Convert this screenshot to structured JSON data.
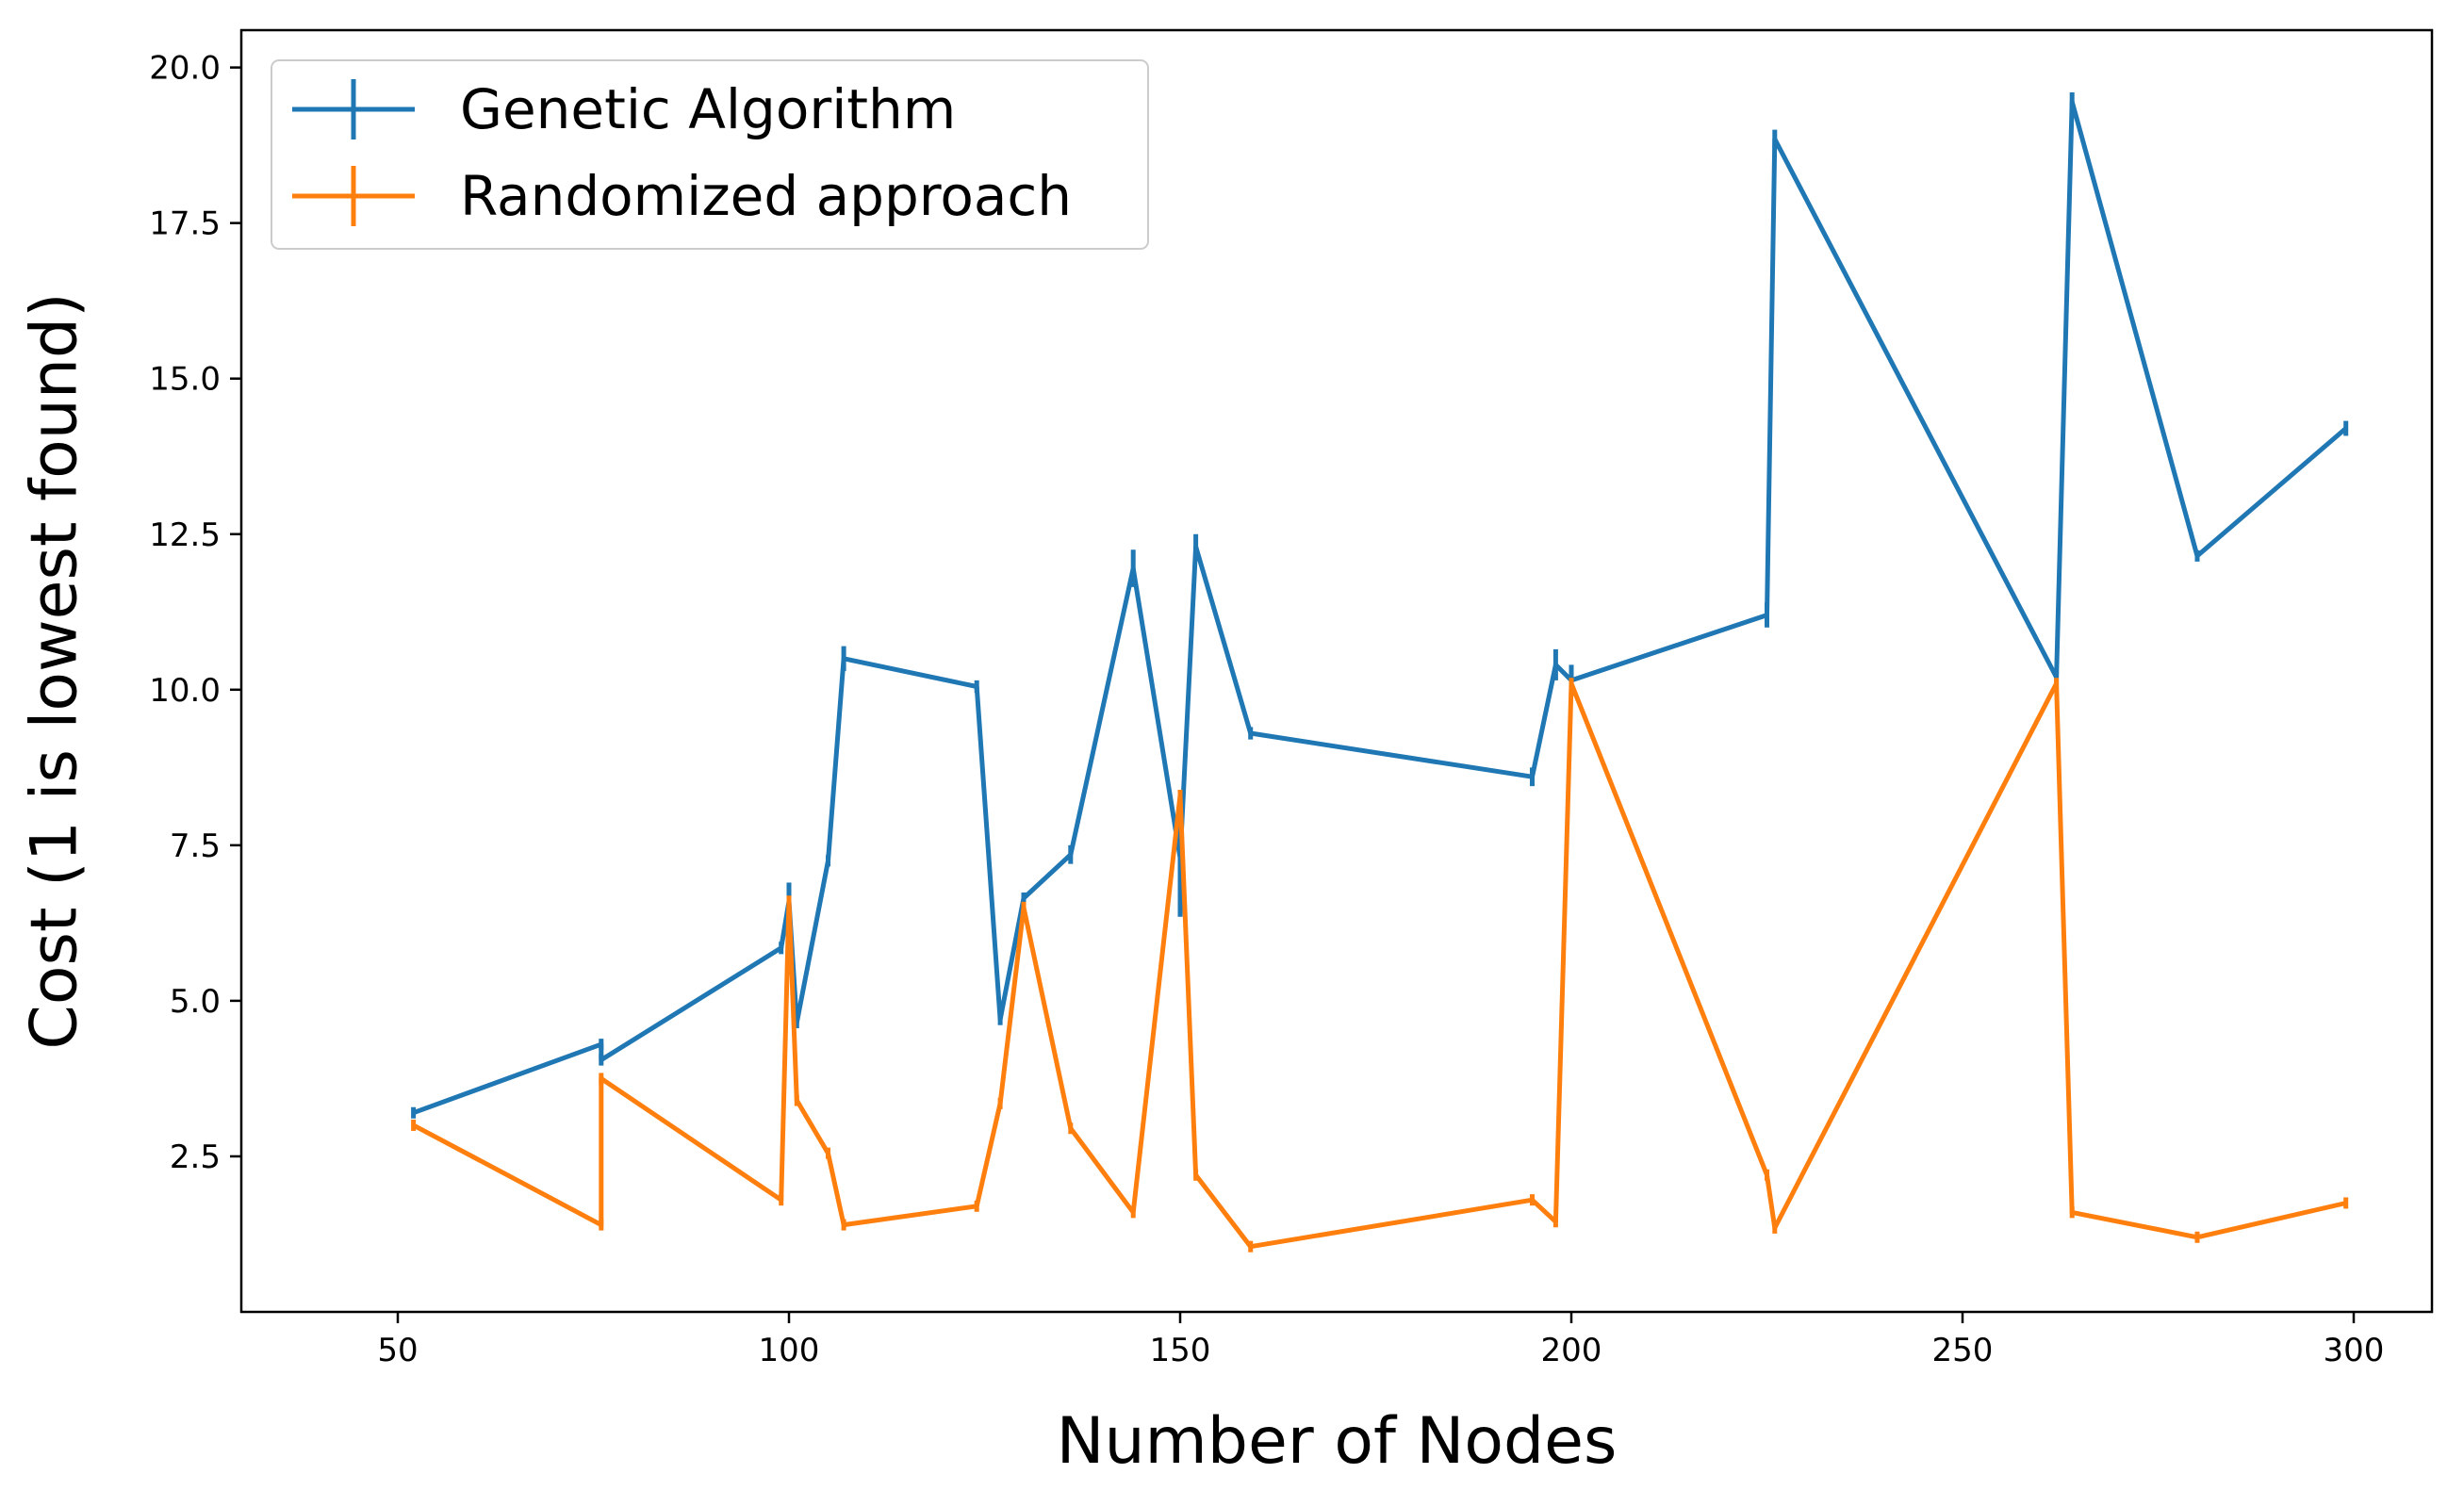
{
  "chart_data": {
    "type": "line",
    "title": "",
    "xlabel": "Number of Nodes",
    "ylabel": "Cost (1 is lowest found)",
    "xlim": [
      30,
      310
    ],
    "ylim": [
      0,
      20.6
    ],
    "xticks": [
      50,
      100,
      150,
      200,
      250,
      300
    ],
    "xtick_labels": [
      "50",
      "100",
      "150",
      "200",
      "250",
      "300"
    ],
    "yticks": [
      2.5,
      5.0,
      7.5,
      10.0,
      12.5,
      15.0,
      17.5,
      20.0
    ],
    "ytick_labels": [
      "2.5",
      "5.0",
      "7.5",
      "10.0",
      "12.5",
      "15.0",
      "17.5",
      "20.0"
    ],
    "grid": false,
    "legend_position": "top-left",
    "series": [
      {
        "name": "Genetic Algorithm",
        "color": "#1f77b4",
        "x": [
          52,
          76,
          76,
          99,
          100,
          101,
          105,
          107,
          124,
          127,
          130,
          136,
          144,
          150,
          152,
          159,
          195,
          198,
          200,
          225,
          226,
          262,
          264,
          280,
          299
        ],
        "y": [
          3.2,
          4.3,
          4.05,
          5.85,
          6.6,
          4.65,
          7.25,
          10.5,
          10.05,
          4.7,
          6.65,
          7.35,
          11.95,
          7.3,
          12.3,
          9.3,
          8.6,
          10.4,
          10.15,
          11.2,
          18.85,
          10.2,
          19.45,
          12.15,
          14.2
        ],
        "err": [
          0.05,
          0.08,
          0.08,
          0.1,
          0.3,
          0.05,
          0.05,
          0.2,
          0.1,
          0.05,
          0.05,
          0.15,
          0.3,
          0.95,
          0.2,
          0.1,
          0.15,
          0.25,
          0.25,
          0.2,
          0.15,
          0.1,
          0.15,
          0.05,
          0.12
        ]
      },
      {
        "name": "Randomized approach",
        "color": "#ff7f0e",
        "x": [
          52,
          76,
          76,
          99,
          100,
          101,
          105,
          107,
          124,
          127,
          130,
          136,
          144,
          150,
          152,
          159,
          195,
          198,
          200,
          225,
          226,
          262,
          264,
          280,
          299
        ],
        "y": [
          3.0,
          1.4,
          3.75,
          1.8,
          6.6,
          3.4,
          2.55,
          1.4,
          1.7,
          3.35,
          6.5,
          2.95,
          1.6,
          8.3,
          2.2,
          1.05,
          1.8,
          1.45,
          10.1,
          2.2,
          1.35,
          10.1,
          1.6,
          1.2,
          1.75
        ]
      }
    ]
  }
}
